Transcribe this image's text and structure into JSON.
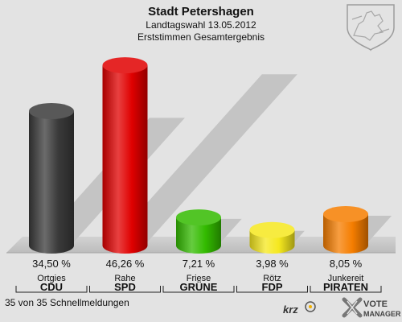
{
  "chart_data": {
    "type": "bar",
    "title": "Stadt Petershagen",
    "subtitle1": "Landtagswahl 13.05.2012",
    "subtitle2": "Erststimmen Gesamtergebnis",
    "categories": [
      "CDU",
      "SPD",
      "GRÜNE",
      "FDP",
      "PIRATEN"
    ],
    "candidates": [
      "Ortgies",
      "Rahe",
      "Friese",
      "Rötz",
      "Junkereit"
    ],
    "values": [
      34.5,
      46.26,
      7.21,
      3.98,
      8.05
    ],
    "value_labels": [
      "34,50 %",
      "46,26 %",
      "7,21 %",
      "3,98 %",
      "8,05 %"
    ],
    "colors": [
      "#3a3a3a",
      "#e00000",
      "#33bb00",
      "#f5e81e",
      "#f57d00"
    ],
    "ylim": [
      0,
      50
    ],
    "grid": false,
    "legend": "none"
  },
  "footer": {
    "status": "35 von 35 Schnellmeldungen",
    "krz_logo": "krz",
    "vote_logo_line1": "VOTE",
    "vote_logo_line2": "MANAGER"
  }
}
